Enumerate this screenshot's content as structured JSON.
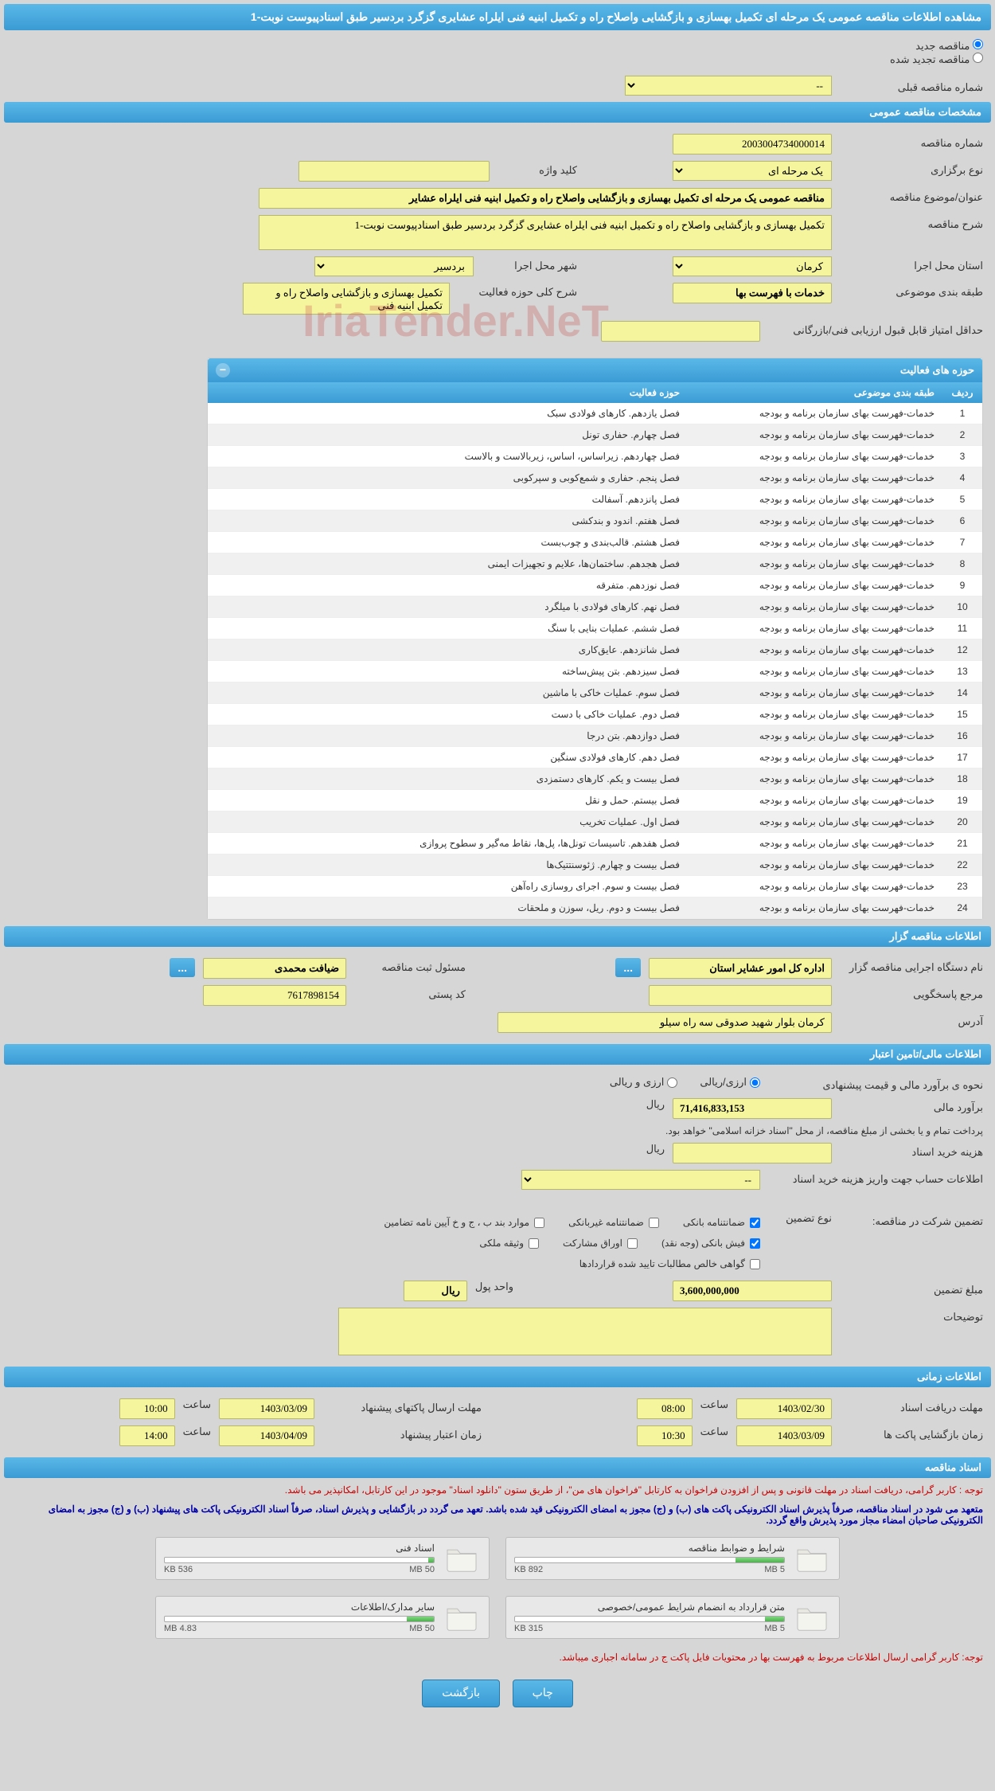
{
  "header": {
    "title": "مشاهده اطلاعات مناقصه عمومی یک مرحله ای تکمیل بهسازی و بازگشایی واصلاح راه و تکمیل ابنیه فنی ایلراه عشایری گزگرد بردسیر طبق اسنادپیوست نوبت-1"
  },
  "type_radios": {
    "new": "مناقصه جدید",
    "renewed": "مناقصه تجدید شده"
  },
  "prev_tender": {
    "label": "شماره مناقصه قبلی",
    "value": "--"
  },
  "sections": {
    "general": "مشخصات مناقصه عمومی",
    "activities": "حوزه های فعالیت",
    "organizer": "اطلاعات مناقصه گزار",
    "financial": "اطلاعات مالی/تامین اعتبار",
    "timing": "اطلاعات زمانی",
    "documents": "اسناد مناقصه"
  },
  "general": {
    "tender_no_label": "شماره مناقصه",
    "tender_no": "2003004734000014",
    "type_label": "نوع برگزاری",
    "type": "یک مرحله ای",
    "keyword_label": "کلید واژه",
    "keyword": "",
    "subject_label": "عنوان/موضوع مناقصه",
    "subject": "مناقصه عمومی یک مرحله ای تکمیل بهسازی و بازگشایی واصلاح راه و تکمیل ابنیه فنی ایلراه عشایر",
    "desc_label": "شرح مناقصه",
    "desc": "تکمیل بهسازی و بازگشایی واصلاح راه و تکمیل ابنیه فنی ایلراه عشایری گزگرد بردسیر طبق اسنادپیوست نوبت-1",
    "province_label": "استان محل اجرا",
    "province": "کرمان",
    "city_label": "شهر محل اجرا",
    "city": "بردسیر",
    "category_label": "طبقه بندی موضوعی",
    "category": "خدمات با فهرست بها",
    "activity_desc_label": "شرح کلی حوزه فعالیت",
    "activity_desc": "تکمیل بهسازی و بازگشایی واصلاح راه و تکمیل ابنیه فنی",
    "min_score_label": "حداقل امتیاز قابل قبول ارزیابی فنی/بازرگانی",
    "min_score": ""
  },
  "activities_table": {
    "cols": {
      "row": "ردیف",
      "category": "طبقه بندی موضوعی",
      "activity": "حوزه فعالیت"
    },
    "rows": [
      {
        "n": "1",
        "cat": "خدمات-فهرست بهای سازمان برنامه و بودجه",
        "act": "فصل یازدهم. کارهای فولادی سبک"
      },
      {
        "n": "2",
        "cat": "خدمات-فهرست بهای سازمان برنامه و بودجه",
        "act": "فصل چهارم. حفاری تونل"
      },
      {
        "n": "3",
        "cat": "خدمات-فهرست بهای سازمان برنامه و بودجه",
        "act": "فصل چهاردهم. زیراساس، اساس، زیربالاست و بالاست"
      },
      {
        "n": "4",
        "cat": "خدمات-فهرست بهای سازمان برنامه و بودجه",
        "act": "فصل پنجم. حفاری و شمع‌کوبی و سپرکوبی"
      },
      {
        "n": "5",
        "cat": "خدمات-فهرست بهای سازمان برنامه و بودجه",
        "act": "فصل پانزدهم. آسفالت"
      },
      {
        "n": "6",
        "cat": "خدمات-فهرست بهای سازمان برنامه و بودجه",
        "act": "فصل هفتم. اندود و بندکشی"
      },
      {
        "n": "7",
        "cat": "خدمات-فهرست بهای سازمان برنامه و بودجه",
        "act": "فصل هشتم. قالب‌بندی و چوب‌بست"
      },
      {
        "n": "8",
        "cat": "خدمات-فهرست بهای سازمان برنامه و بودجه",
        "act": "فصل هجدهم. ساختمان‌ها، علایم و تجهیزات ایمنی"
      },
      {
        "n": "9",
        "cat": "خدمات-فهرست بهای سازمان برنامه و بودجه",
        "act": "فصل نوزدهم. متفرقه"
      },
      {
        "n": "10",
        "cat": "خدمات-فهرست بهای سازمان برنامه و بودجه",
        "act": "فصل نهم. کارهای فولادی با میلگرد"
      },
      {
        "n": "11",
        "cat": "خدمات-فهرست بهای سازمان برنامه و بودجه",
        "act": "فصل ششم. عملیات بنایی با سنگ"
      },
      {
        "n": "12",
        "cat": "خدمات-فهرست بهای سازمان برنامه و بودجه",
        "act": "فصل شانزدهم. عایق‌کاری"
      },
      {
        "n": "13",
        "cat": "خدمات-فهرست بهای سازمان برنامه و بودجه",
        "act": "فصل سیزدهم. بتن پیش‌ساخته"
      },
      {
        "n": "14",
        "cat": "خدمات-فهرست بهای سازمان برنامه و بودجه",
        "act": "فصل سوم. عملیات خاکی با ماشین"
      },
      {
        "n": "15",
        "cat": "خدمات-فهرست بهای سازمان برنامه و بودجه",
        "act": "فصل دوم. عملیات خاکی با دست"
      },
      {
        "n": "16",
        "cat": "خدمات-فهرست بهای سازمان برنامه و بودجه",
        "act": "فصل دوازدهم. بتن درجا"
      },
      {
        "n": "17",
        "cat": "خدمات-فهرست بهای سازمان برنامه و بودجه",
        "act": "فصل دهم. کارهای فولادی سنگین"
      },
      {
        "n": "18",
        "cat": "خدمات-فهرست بهای سازمان برنامه و بودجه",
        "act": "فصل بیست و یکم. کارهای دستمزدی"
      },
      {
        "n": "19",
        "cat": "خدمات-فهرست بهای سازمان برنامه و بودجه",
        "act": "فصل بیستم. حمل و نقل"
      },
      {
        "n": "20",
        "cat": "خدمات-فهرست بهای سازمان برنامه و بودجه",
        "act": "فصل اول. عملیات تخریب"
      },
      {
        "n": "21",
        "cat": "خدمات-فهرست بهای سازمان برنامه و بودجه",
        "act": "فصل هفدهم. تاسیسات تونل‌ها، پل‌ها، نقاط مه‌گیر و سطوح پروازی"
      },
      {
        "n": "22",
        "cat": "خدمات-فهرست بهای سازمان برنامه و بودجه",
        "act": "فصل بیست و چهارم. ژئوسنتتیک‌ها"
      },
      {
        "n": "23",
        "cat": "خدمات-فهرست بهای سازمان برنامه و بودجه",
        "act": "فصل بیست و سوم. اجرای روسازی راه‌آهن"
      },
      {
        "n": "24",
        "cat": "خدمات-فهرست بهای سازمان برنامه و بودجه",
        "act": "فصل بیست و دوم. ریل، سوزن و ملحقات"
      }
    ]
  },
  "organizer": {
    "org_name_label": "نام دستگاه اجرایی مناقصه گزار",
    "org_name": "اداره کل امور عشایر استان",
    "registrar_label": "مسئول ثبت مناقصه",
    "registrar": "ضیافت محمدی",
    "ref_label": "مرجع پاسخگویی",
    "ref": "",
    "postal_label": "کد پستی",
    "postal": "7617898154",
    "address_label": "آدرس",
    "address": "کرمان بلوار شهید صدوقی سه راه سیلو"
  },
  "financial": {
    "estimate_method_label": "نحوه ی برآورد مالی و قیمت پیشنهادی",
    "opt_arzi_riali": "ارزی/ریالی",
    "opt_arzi_o_riali": "ارزی و ریالی",
    "estimate_label": "برآورد مالی",
    "estimate": "71,416,833,153",
    "currency": "ریال",
    "payment_note": "پرداخت تمام و یا بخشی از مبلغ مناقصه، از محل \"اسناد خزانه اسلامی\" خواهد بود.",
    "doc_fee_label": "هزینه خرید اسناد",
    "doc_fee": "",
    "doc_fee_currency": "ریال",
    "account_info_label": "اطلاعات حساب جهت واریز هزینه خرید اسناد",
    "account_info": "--",
    "guarantee_label": "تضمین شرکت در مناقصه:",
    "guarantee_type_label": "نوع تضمین",
    "g_bank": "ضمانتنامه بانکی",
    "g_nonbank": "ضمانتنامه غیربانکی",
    "g_clause": "موارد بند ب ، ج و خ آیین نامه تضامین",
    "g_cash": "فیش بانکی (وجه نقد)",
    "g_bonds": "اوراق مشارکت",
    "g_property": "وثیقه ملکی",
    "g_receivables": "گواهی خالص مطالبات تایید شده قراردادها",
    "guarantee_amount_label": "مبلغ تضمین",
    "guarantee_amount": "3,600,000,000",
    "unit_label": "واحد پول",
    "unit": "ریال",
    "notes_label": "توضیحات",
    "notes": ""
  },
  "timing": {
    "doc_deadline_label": "مهلت دریافت اسناد",
    "doc_deadline_date": "1403/02/30",
    "doc_deadline_time_label": "ساعت",
    "doc_deadline_time": "08:00",
    "proposal_deadline_label": "مهلت ارسال پاکتهای پیشنهاد",
    "proposal_deadline_date": "1403/03/09",
    "proposal_deadline_time": "10:00",
    "opening_label": "زمان بازگشایی پاکت ها",
    "opening_date": "1403/03/09",
    "opening_time": "10:30",
    "validity_label": "زمان اعتبار پیشنهاد",
    "validity_date": "1403/04/09",
    "validity_time": "14:00"
  },
  "documents": {
    "note1": "توجه : کاربر گرامی، دریافت اسناد در مهلت قانونی و پس از افزودن فراخوان به کارتابل \"فراخوان های من\"، از طریق ستون \"دانلود اسناد\" موجود در این کارتابل، امکانپذیر می باشد.",
    "note2": "متعهد می شود در اسناد مناقصه، صرفاً پذیرش اسناد الکترونیکی پاکت های (ب) و (ج) مجوز به امضای الکترونیکی قید شده باشد. تعهد می گردد در بازگشایی و پذیرش اسناد، صرفاً اسناد الکترونیکی پاکت های پیشنهاد (ب) و (ج) مجوز به امضای الکترونیکی صاحبان امضاء مجاز مورد پذیرش واقع گردد.",
    "files": [
      {
        "name": "شرایط و ضوابط مناقصه",
        "used": "892 KB",
        "total": "5 MB",
        "pct": 18
      },
      {
        "name": "اسناد فنی",
        "used": "536 KB",
        "total": "50 MB",
        "pct": 2
      },
      {
        "name": "متن قرارداد به انضمام شرایط عمومی/خصوصی",
        "used": "315 KB",
        "total": "5 MB",
        "pct": 7
      },
      {
        "name": "سایر مدارک/اطلاعات",
        "used": "4.83 MB",
        "total": "50 MB",
        "pct": 10
      }
    ],
    "note3": "توجه: کاربر گرامی ارسال اطلاعات مربوط به فهرست بها در محتویات فایل پاکت ج در سامانه اجباری میباشد."
  },
  "buttons": {
    "print": "چاپ",
    "back": "بازگشت"
  },
  "watermark": "IriaTender.NeT",
  "colors": {
    "header_bg_top": "#5bb8e8",
    "header_bg_bot": "#3a9bd4",
    "page_bg": "#d6d6d6",
    "yellow": "#f5f59e",
    "red_text": "#cc0000",
    "blue_text": "#0000aa"
  }
}
